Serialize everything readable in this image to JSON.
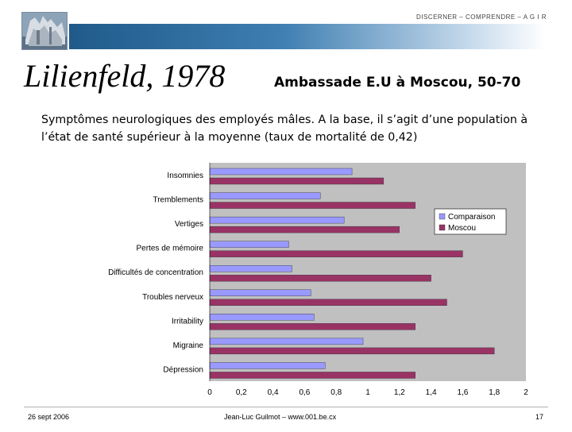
{
  "header": {
    "tagline": "DISCERNER – COMPRENDRE – A G I R",
    "title": "Lilienfeld, 1978",
    "subtitle": "Ambassade E.U à Moscou, 50-70",
    "description": "Symptômes neurologiques des employés mâles. A la base, il s’agit d’une population à l’état de santé supérieur à la moyenne (taux de mortalité de 0,42)"
  },
  "footer": {
    "date": "26 sept 2006",
    "author": "Jean-Luc Guilmot – www.001.be.cx",
    "page": "17"
  },
  "colors": {
    "comparaison": "#9999ff",
    "moscou": "#993366",
    "plot_bg": "#c0c0c0"
  },
  "chart_data": {
    "type": "bar",
    "orientation": "horizontal",
    "title": "",
    "xlabel": "",
    "ylabel": "",
    "categories": [
      "Insomnies",
      "Tremblements",
      "Vertiges",
      "Pertes de mémoire",
      "Difficultés de concentration",
      "Troubles nerveux",
      "Irritability",
      "Migraine",
      "Dépression"
    ],
    "series": [
      {
        "name": "Comparaison",
        "values": [
          0.9,
          0.7,
          0.85,
          0.5,
          0.52,
          0.64,
          0.66,
          0.97,
          0.73
        ]
      },
      {
        "name": "Moscou",
        "values": [
          1.1,
          1.3,
          1.2,
          1.6,
          1.4,
          1.5,
          1.3,
          1.8,
          1.3
        ]
      }
    ],
    "xlim": [
      0,
      2
    ],
    "xticks": [
      "0",
      "0,2",
      "0,4",
      "0,6",
      "0,8",
      "1",
      "1,2",
      "1,4",
      "1,6",
      "1,8",
      "2"
    ],
    "legend": "right"
  }
}
